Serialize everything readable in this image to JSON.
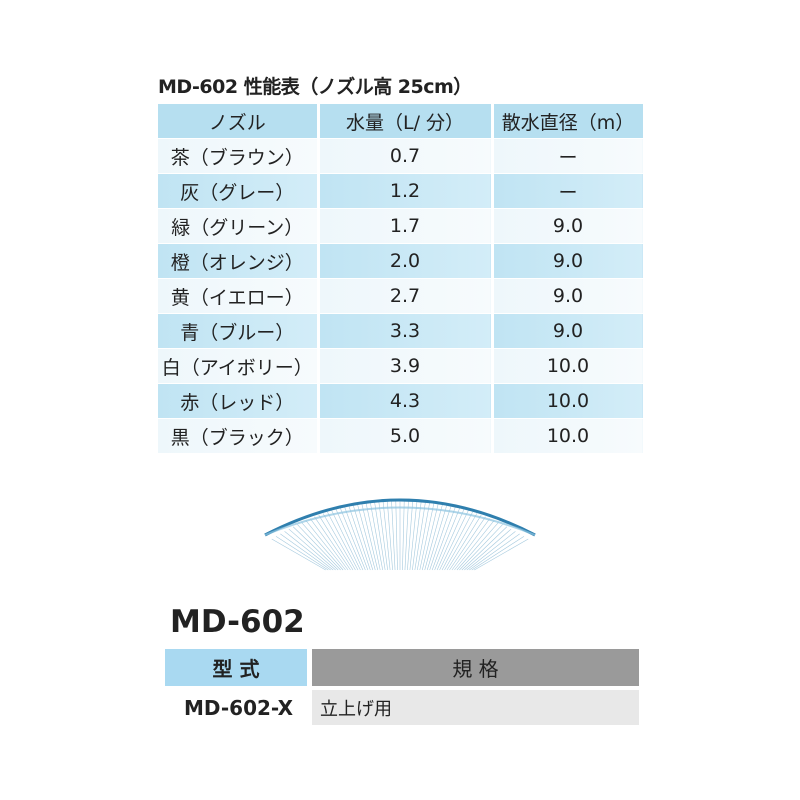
{
  "performance_table": {
    "title": "MD-602 性能表（ノズル高 25cm）",
    "header": [
      "ノズル",
      "水量（L/ 分）",
      "散水直径（m）"
    ],
    "rows": [
      [
        "茶（ブラウン）",
        "0.7",
        "ー"
      ],
      [
        "灰（グレー）",
        "1.2",
        "ー"
      ],
      [
        "緑（グリーン）",
        "1.7",
        "9.0"
      ],
      [
        "橙（オレンジ）",
        "2.0",
        "9.0"
      ],
      [
        "黄（イエロー）",
        "2.7",
        "9.0"
      ],
      [
        "青（ブルー）",
        "3.3",
        "9.0"
      ],
      [
        "白（アイボリー）",
        "3.9",
        "10.0"
      ],
      [
        "赤（レッド）",
        "4.3",
        "10.0"
      ],
      [
        "黒（ブラック）",
        "5.0",
        "10.0"
      ]
    ]
  },
  "spec": {
    "title": "MD-602",
    "header": [
      "型 式",
      "規 格"
    ],
    "rows": [
      [
        "MD-602-X",
        "立上げ用"
      ]
    ]
  }
}
